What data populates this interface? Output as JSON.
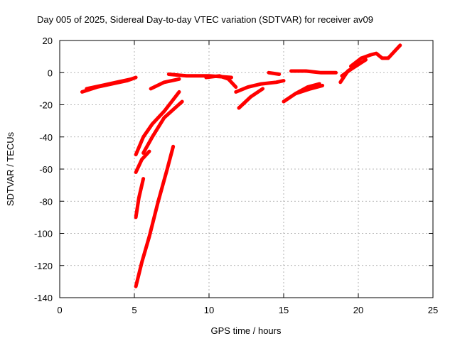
{
  "chart_data": {
    "type": "scatter",
    "title": "Day 005 of 2025, Sidereal Day-to-day VTEC variation (SDTVAR) for receiver av09",
    "xlabel": "GPS time / hours",
    "ylabel": "SDTVAR / TECUs",
    "xlim": [
      0,
      25
    ],
    "ylim": [
      -140,
      20
    ],
    "xticks": [
      0,
      5,
      10,
      15,
      20,
      25
    ],
    "yticks": [
      -140,
      -120,
      -100,
      -80,
      -60,
      -40,
      -20,
      0,
      20
    ],
    "grid": true,
    "legend": "none",
    "marker_color": "#ff0000",
    "series": [
      {
        "x": [
          1.5,
          2.5,
          3.5,
          4.5,
          5.1
        ],
        "y": [
          -12,
          -9,
          -7,
          -5,
          -3
        ]
      },
      {
        "x": [
          1.8,
          2.8,
          3.8,
          4.8
        ],
        "y": [
          -10,
          -8,
          -6,
          -4
        ]
      },
      {
        "x": [
          6.1,
          7.0,
          8.0
        ],
        "y": [
          -10,
          -6,
          -4
        ]
      },
      {
        "x": [
          7.3,
          8.5,
          10.0,
          11.5
        ],
        "y": [
          -1,
          -2,
          -2,
          -3
        ]
      },
      {
        "x": [
          9.8,
          10.7,
          11.3,
          11.8
        ],
        "y": [
          -3,
          -2,
          -4,
          -9
        ]
      },
      {
        "x": [
          5.1,
          5.6,
          6.2,
          7.0,
          8.0
        ],
        "y": [
          -51,
          -40,
          -32,
          -24,
          -12
        ]
      },
      {
        "x": [
          5.1,
          5.5,
          6.0
        ],
        "y": [
          -62,
          -54,
          -49
        ]
      },
      {
        "x": [
          5.6,
          6.2,
          7.0,
          8.2
        ],
        "y": [
          -50,
          -40,
          -28,
          -18
        ]
      },
      {
        "x": [
          5.1,
          5.3,
          5.6
        ],
        "y": [
          -90,
          -78,
          -66
        ]
      },
      {
        "x": [
          5.1,
          5.5,
          6.0,
          6.6,
          7.2,
          7.6
        ],
        "y": [
          -133,
          -118,
          -102,
          -80,
          -60,
          -46
        ]
      },
      {
        "x": [
          11.8,
          12.6,
          13.5,
          14.5,
          15.0
        ],
        "y": [
          -12,
          -9,
          -7,
          -6,
          -5
        ]
      },
      {
        "x": [
          12.0,
          12.8,
          13.6
        ],
        "y": [
          -22,
          -15,
          -10
        ]
      },
      {
        "x": [
          14.0,
          14.7
        ],
        "y": [
          0,
          -1
        ]
      },
      {
        "x": [
          15.0,
          15.8,
          16.8,
          17.6
        ],
        "y": [
          -18,
          -13,
          -10,
          -8
        ]
      },
      {
        "x": [
          15.8,
          16.6,
          17.4
        ],
        "y": [
          -13,
          -9,
          -7
        ]
      },
      {
        "x": [
          15.5,
          16.5,
          17.5,
          18.5
        ],
        "y": [
          1,
          1,
          0,
          0
        ]
      },
      {
        "x": [
          18.8,
          19.3,
          19.8
        ],
        "y": [
          -6,
          1,
          4
        ]
      },
      {
        "x": [
          18.9,
          19.5,
          20.0,
          20.5
        ],
        "y": [
          -2,
          2,
          5,
          8
        ]
      },
      {
        "x": [
          19.5,
          20.2,
          20.8,
          21.2,
          21.6,
          22.0,
          22.5,
          22.8
        ],
        "y": [
          4,
          9,
          11,
          12,
          9,
          9,
          14,
          17
        ]
      }
    ]
  }
}
